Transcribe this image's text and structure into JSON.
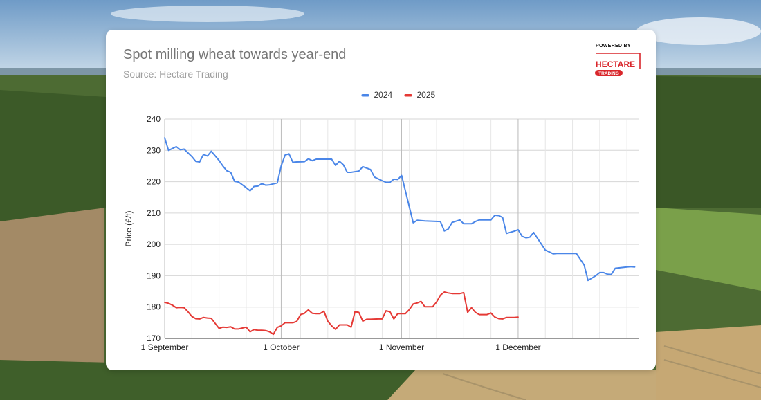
{
  "card": {
    "title": "Spot milling wheat towards year-end",
    "subtitle": "Source: Hectare Trading"
  },
  "logo": {
    "powered_by": "POWERED BY",
    "brand": "HECTARE",
    "tagline": "TRADING",
    "color": "#d9262b"
  },
  "chart_data": {
    "type": "line",
    "title": "Spot milling wheat towards year-end",
    "subtitle": "Source: Hectare Trading",
    "xlabel": "",
    "ylabel": "Price (£/t)",
    "ylim": [
      170,
      240
    ],
    "yticks": [
      170,
      180,
      190,
      200,
      210,
      220,
      230,
      240
    ],
    "xlim": [
      0,
      122
    ],
    "xticks": [
      {
        "x": 0,
        "label": "1 September"
      },
      {
        "x": 30,
        "label": "1 October"
      },
      {
        "x": 61,
        "label": "1 November"
      },
      {
        "x": 91,
        "label": "1 December"
      }
    ],
    "grid": true,
    "legend_position": "top-center",
    "series": [
      {
        "name": "2024",
        "color": "#4a86e8",
        "points": [
          [
            0,
            234
          ],
          [
            1,
            230
          ],
          [
            3,
            231.2
          ],
          [
            4,
            230.2
          ],
          [
            5,
            230.4
          ],
          [
            7,
            228
          ],
          [
            8,
            226.5
          ],
          [
            9,
            226.3
          ],
          [
            10,
            228.7
          ],
          [
            11,
            228.2
          ],
          [
            12,
            229.7
          ],
          [
            14,
            226.8
          ],
          [
            15,
            225
          ],
          [
            16,
            223.5
          ],
          [
            17,
            223
          ],
          [
            18,
            220.1
          ],
          [
            19,
            219.9
          ],
          [
            20,
            219
          ],
          [
            21,
            218.1
          ],
          [
            22,
            217.1
          ],
          [
            23,
            218.5
          ],
          [
            24,
            218.6
          ],
          [
            25,
            219.4
          ],
          [
            26,
            218.9
          ],
          [
            27,
            219
          ],
          [
            28,
            219.3
          ],
          [
            29,
            219.6
          ],
          [
            30,
            225
          ],
          [
            31,
            228.5
          ],
          [
            32,
            228.9
          ],
          [
            33,
            226.2
          ],
          [
            34,
            226.3
          ],
          [
            36,
            226.4
          ],
          [
            37,
            227.3
          ],
          [
            38,
            226.7
          ],
          [
            39,
            227.2
          ],
          [
            43,
            227.2
          ],
          [
            44,
            225.2
          ],
          [
            45,
            226.5
          ],
          [
            46,
            225.4
          ],
          [
            47,
            223
          ],
          [
            48,
            223
          ],
          [
            50,
            223.4
          ],
          [
            51,
            224.8
          ],
          [
            53,
            223.9
          ],
          [
            54,
            221.5
          ],
          [
            56,
            220.3
          ],
          [
            57,
            219.8
          ],
          [
            58,
            219.8
          ],
          [
            59,
            220.8
          ],
          [
            60,
            220.7
          ],
          [
            61,
            222
          ],
          [
            64,
            206.9
          ],
          [
            65,
            207.7
          ],
          [
            66,
            207.6
          ],
          [
            67,
            207.5
          ],
          [
            71,
            207.3
          ],
          [
            72,
            204.3
          ],
          [
            73,
            204.9
          ],
          [
            74,
            207
          ],
          [
            76,
            207.8
          ],
          [
            77,
            206.6
          ],
          [
            79,
            206.6
          ],
          [
            80,
            207.3
          ],
          [
            81,
            207.8
          ],
          [
            84,
            207.8
          ],
          [
            85,
            209.3
          ],
          [
            86,
            209.2
          ],
          [
            87,
            208.6
          ],
          [
            88,
            203.5
          ],
          [
            90,
            204.2
          ],
          [
            91,
            204.7
          ],
          [
            92,
            202.6
          ],
          [
            93,
            202.1
          ],
          [
            94,
            202.3
          ],
          [
            95,
            203.8
          ],
          [
            98,
            198.2
          ],
          [
            100,
            197
          ],
          [
            101,
            197.1
          ],
          [
            106,
            197.1
          ],
          [
            108,
            193.4
          ],
          [
            109,
            188.5
          ],
          [
            111,
            190
          ],
          [
            112,
            191
          ],
          [
            113,
            191
          ],
          [
            114,
            190.5
          ],
          [
            115,
            190.4
          ],
          [
            116,
            192.4
          ],
          [
            119,
            192.8
          ],
          [
            120,
            192.9
          ],
          [
            121,
            192.8
          ]
        ]
      },
      {
        "name": "2025",
        "color": "#e53935",
        "points": [
          [
            0,
            181.5
          ],
          [
            1,
            181.2
          ],
          [
            2,
            180.6
          ],
          [
            3,
            179.8
          ],
          [
            4,
            179.9
          ],
          [
            5,
            179.8
          ],
          [
            6,
            178.5
          ],
          [
            7,
            177
          ],
          [
            8,
            176.3
          ],
          [
            9,
            176.2
          ],
          [
            10,
            176.7
          ],
          [
            11,
            176.5
          ],
          [
            12,
            176.4
          ],
          [
            13,
            174.8
          ],
          [
            14,
            173.2
          ],
          [
            15,
            173.6
          ],
          [
            16,
            173.5
          ],
          [
            17,
            173.7
          ],
          [
            18,
            173
          ],
          [
            19,
            173
          ],
          [
            21,
            173.6
          ],
          [
            22,
            172.1
          ],
          [
            23,
            172.8
          ],
          [
            24,
            172.6
          ],
          [
            25,
            172.6
          ],
          [
            26,
            172.5
          ],
          [
            27,
            172.1
          ],
          [
            28,
            171.3
          ],
          [
            29,
            173.5
          ],
          [
            30,
            174
          ],
          [
            31,
            175
          ],
          [
            33,
            175
          ],
          [
            34,
            175.4
          ],
          [
            35,
            177.6
          ],
          [
            36,
            178
          ],
          [
            37,
            179.1
          ],
          [
            38,
            178
          ],
          [
            39,
            177.9
          ],
          [
            40,
            177.9
          ],
          [
            41,
            178.7
          ],
          [
            42,
            175.5
          ],
          [
            43,
            174
          ],
          [
            44,
            172.9
          ],
          [
            45,
            174.3
          ],
          [
            46,
            174.3
          ],
          [
            47,
            174.3
          ],
          [
            48,
            173.6
          ],
          [
            49,
            178.5
          ],
          [
            50,
            178.3
          ],
          [
            51,
            175.5
          ],
          [
            52,
            176.1
          ],
          [
            53,
            176.1
          ],
          [
            55,
            176.2
          ],
          [
            56,
            176.2
          ],
          [
            57,
            178.8
          ],
          [
            58,
            178.5
          ],
          [
            59,
            176.2
          ],
          [
            60,
            177.9
          ],
          [
            61,
            177.9
          ],
          [
            62,
            177.9
          ],
          [
            63,
            179.2
          ],
          [
            64,
            181
          ],
          [
            65,
            181.3
          ],
          [
            66,
            181.8
          ],
          [
            67,
            180.1
          ],
          [
            68,
            180.1
          ],
          [
            69,
            180.1
          ],
          [
            70,
            181.6
          ],
          [
            71,
            183.8
          ],
          [
            72,
            184.8
          ],
          [
            73,
            184.5
          ],
          [
            74,
            184.3
          ],
          [
            75,
            184.3
          ],
          [
            76,
            184.3
          ],
          [
            77,
            184.6
          ],
          [
            78,
            178.3
          ],
          [
            79,
            179.8
          ],
          [
            80,
            178.3
          ],
          [
            81,
            177.6
          ],
          [
            83,
            177.6
          ],
          [
            84,
            178.1
          ],
          [
            85,
            176.8
          ],
          [
            86,
            176.3
          ],
          [
            87,
            176.2
          ],
          [
            88,
            176.7
          ],
          [
            89,
            176.7
          ],
          [
            90,
            176.7
          ],
          [
            91,
            176.8
          ]
        ]
      }
    ]
  }
}
